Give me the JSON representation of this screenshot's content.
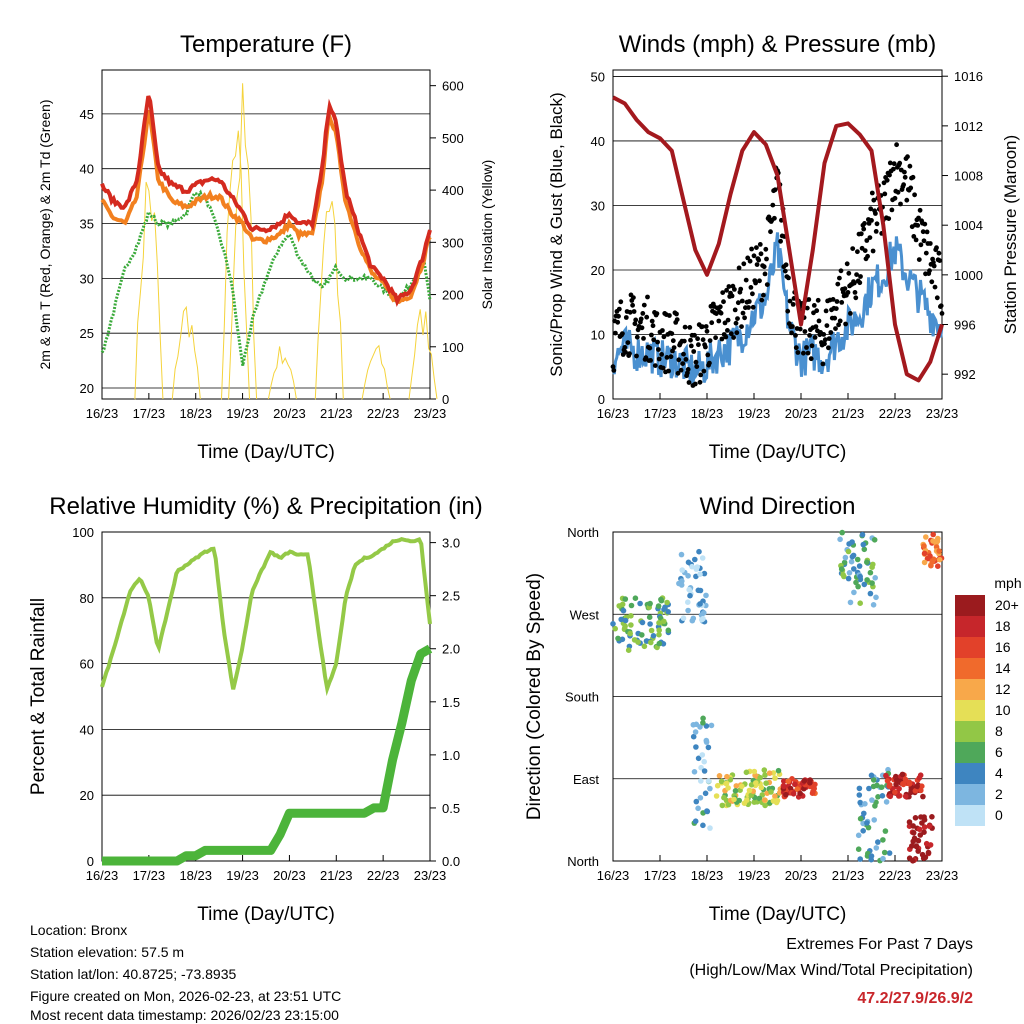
{
  "colors": {
    "temp2m": "#d42a1f",
    "temp9m": "#f2801f",
    "dewpoint": "#3aaa3a",
    "solar": "#f5d33c",
    "wind_sustained": "#4a90d0",
    "wind_gust": "#000000",
    "pressure": "#a3191e",
    "rh": "#94c947",
    "precip": "#4cb43a",
    "grid": "#000000",
    "extremes": "#c8262b"
  },
  "x_ticks": [
    "16/23",
    "17/23",
    "18/23",
    "19/23",
    "20/23",
    "21/23",
    "22/23",
    "23/23"
  ],
  "chart_data": [
    {
      "id": "temperature",
      "type": "line",
      "title": "Temperature (F)",
      "xlabel": "Time (Day/UTC)",
      "ylabel": "2m & 9m T (Red, Orange) & 2m Td (Green)",
      "ylabel_right": "Solar Insolation (Yellow)",
      "ylim": [
        19,
        49
      ],
      "yticks": [
        "20",
        "25",
        "30",
        "35",
        "40",
        "45"
      ],
      "ylim_right": [
        0,
        630
      ],
      "yticks_right": [
        "0",
        "100",
        "200",
        "300",
        "400",
        "500",
        "600"
      ],
      "x": [
        0,
        0.25,
        0.5,
        0.75,
        1.0,
        1.2,
        1.5,
        1.8,
        2.0,
        2.25,
        2.5,
        2.75,
        3.0,
        3.2,
        3.5,
        3.8,
        4.0,
        4.2,
        4.5,
        4.7,
        4.85,
        5.0,
        5.2,
        5.5,
        5.75,
        6.0,
        6.3,
        6.6,
        6.85,
        7.0
      ],
      "series": [
        {
          "name": "2m T",
          "color_key": "temp2m",
          "values": [
            38.5,
            37,
            36.5,
            39,
            47,
            40,
            38.5,
            38,
            38.5,
            39,
            39,
            37.5,
            36,
            34.5,
            34.5,
            35,
            36,
            35,
            35,
            40,
            46,
            44,
            38,
            34,
            31,
            30,
            28,
            29,
            32,
            34.5
          ]
        },
        {
          "name": "9m T",
          "color_key": "temp9m",
          "values": [
            37,
            35.5,
            35,
            37.5,
            45.5,
            39,
            37,
            36.5,
            37,
            37.5,
            37.5,
            36,
            35,
            33.5,
            33.5,
            34,
            35,
            34,
            34,
            39,
            45,
            43,
            37,
            33,
            30.5,
            29.5,
            27.8,
            28.5,
            31.5,
            34
          ]
        },
        {
          "name": "2m Td",
          "color_key": "dewpoint",
          "values": [
            23,
            27,
            31,
            33,
            36,
            35,
            35,
            36,
            38,
            37,
            34,
            30,
            22,
            26,
            30,
            33,
            34,
            32,
            30,
            29,
            30,
            31,
            30,
            30,
            30,
            29,
            28,
            29.5,
            32,
            28
          ]
        }
      ],
      "solar": {
        "color_key": "solar",
        "peaks": [
          {
            "x": 1.0,
            "value": 490
          },
          {
            "x": 1.8,
            "value": 200
          },
          {
            "x": 2.85,
            "value": 560
          },
          {
            "x": 3.0,
            "value": 620
          },
          {
            "x": 3.85,
            "value": 110
          },
          {
            "x": 4.85,
            "value": 490
          },
          {
            "x": 5.85,
            "value": 110
          },
          {
            "x": 6.85,
            "value": 190
          }
        ]
      }
    },
    {
      "id": "winds",
      "type": "line",
      "title": "Winds (mph) & Pressure (mb)",
      "xlabel": "Time (Day/UTC)",
      "ylabel": "Sonic/Prop Wind & Gust (Blue, Black)",
      "ylabel_right": "Station Pressure (Maroon)",
      "ylim": [
        0,
        51
      ],
      "yticks": [
        "0",
        "10",
        "20",
        "30",
        "40",
        "50"
      ],
      "ylim_right": [
        990,
        1016.5
      ],
      "yticks_right": [
        "992",
        "996",
        "1000",
        "1004",
        "1008",
        "1012",
        "1016"
      ],
      "x": [
        0,
        0.25,
        0.5,
        0.75,
        1.0,
        1.25,
        1.5,
        1.75,
        2.0,
        2.25,
        2.5,
        2.75,
        3.0,
        3.25,
        3.5,
        3.75,
        4.0,
        4.25,
        4.5,
        4.75,
        5.0,
        5.25,
        5.5,
        5.75,
        6.0,
        6.25,
        6.5,
        6.75,
        7.0
      ],
      "series": [
        {
          "name": "Sustained wind",
          "color_key": "wind_sustained",
          "values": [
            5,
            7,
            6,
            6,
            5,
            5,
            4,
            3,
            4,
            6,
            7,
            9,
            12,
            14,
            22,
            10,
            5,
            6,
            5,
            8,
            10,
            12,
            16,
            18,
            22,
            18,
            15,
            12,
            10
          ]
        },
        {
          "name": "Gust",
          "color_key": "wind_gust",
          "values": [
            8,
            11,
            10,
            10,
            8,
            8,
            7,
            5,
            8,
            11,
            13,
            15,
            18,
            20,
            32,
            15,
            9,
            10,
            9,
            14,
            16,
            20,
            26,
            28,
            35,
            33,
            25,
            20,
            16
          ]
        },
        {
          "name": "Station pressure",
          "color_key": "pressure",
          "values": [
            1014.3,
            1013.8,
            1012.5,
            1011.5,
            1011,
            1010,
            1006,
            1002,
            1000,
            1002.5,
            1006.5,
            1010,
            1011.5,
            1010.5,
            1008,
            1002,
            996,
            1002,
            1009,
            1012,
            1012.2,
            1011.3,
            1010,
            1004,
            996,
            992,
            991.5,
            993,
            996
          ]
        }
      ]
    },
    {
      "id": "humidity",
      "type": "line",
      "title": "Relative Humidity (%) & Precipitation (in)",
      "xlabel": "Time (Day/UTC)",
      "ylabel": "Percent & Total Rainfall",
      "ylim": [
        0,
        100
      ],
      "yticks": [
        "0",
        "20",
        "40",
        "60",
        "80",
        "100"
      ],
      "ylim_right": [
        0,
        3.1
      ],
      "yticks_right": [
        "0.0",
        "0.5",
        "1.0",
        "1.5",
        "2.0",
        "2.5",
        "3.0"
      ],
      "x": [
        0,
        0.2,
        0.4,
        0.6,
        0.8,
        1.0,
        1.2,
        1.4,
        1.6,
        1.8,
        2.0,
        2.2,
        2.4,
        2.6,
        2.8,
        3.0,
        3.2,
        3.4,
        3.6,
        3.8,
        4.0,
        4.2,
        4.4,
        4.6,
        4.8,
        5.0,
        5.2,
        5.4,
        5.6,
        5.8,
        6.0,
        6.2,
        6.4,
        6.6,
        6.8,
        7.0
      ],
      "series": [
        {
          "name": "Relative humidity",
          "color_key": "rh",
          "values": [
            53,
            62,
            72,
            82,
            86,
            80,
            64,
            76,
            88,
            90,
            92,
            94,
            95,
            70,
            52,
            65,
            82,
            88,
            94,
            92,
            94,
            93,
            93,
            72,
            52,
            60,
            80,
            90,
            92,
            93,
            95,
            97,
            98,
            97,
            98,
            72
          ]
        },
        {
          "name": "Total precipitation",
          "color_key": "precip",
          "values": [
            0,
            0,
            0,
            0,
            0,
            0,
            0,
            0,
            0,
            0.05,
            0.05,
            0.1,
            0.1,
            0.1,
            0.1,
            0.1,
            0.1,
            0.1,
            0.1,
            0.25,
            0.45,
            0.45,
            0.45,
            0.45,
            0.45,
            0.45,
            0.45,
            0.45,
            0.45,
            0.5,
            0.5,
            0.95,
            1.3,
            1.7,
            1.95,
            2.0
          ]
        }
      ]
    },
    {
      "id": "direction",
      "type": "scatter",
      "title": "Wind Direction",
      "xlabel": "Time (Day/UTC)",
      "ylabel": "Direction (Colored By Speed)",
      "ylim": [
        0,
        360
      ],
      "ytick_labels": [
        "North",
        "East",
        "South",
        "West",
        "North"
      ],
      "clusters": [
        {
          "x0": 0.0,
          "x1": 1.2,
          "y0": 230,
          "y1": 290,
          "speed": 6
        },
        {
          "x0": 1.4,
          "x1": 2.0,
          "y0": 260,
          "y1": 340,
          "speed": 2
        },
        {
          "x0": 1.7,
          "x1": 2.1,
          "y0": 10,
          "y1": 160,
          "speed": 3
        },
        {
          "x0": 2.2,
          "x1": 3.6,
          "y0": 60,
          "y1": 100,
          "speed": 9
        },
        {
          "x0": 3.6,
          "x1": 4.3,
          "y0": 70,
          "y1": 90,
          "speed": 17
        },
        {
          "x0": 4.8,
          "x1": 5.6,
          "y0": 280,
          "y1": 360,
          "speed": 5
        },
        {
          "x0": 5.2,
          "x1": 5.9,
          "y0": 0,
          "y1": 100,
          "speed": 4
        },
        {
          "x0": 5.8,
          "x1": 6.6,
          "y0": 70,
          "y1": 95,
          "speed": 18
        },
        {
          "x0": 6.3,
          "x1": 6.8,
          "y0": 0,
          "y1": 50,
          "speed": 20
        },
        {
          "x0": 6.6,
          "x1": 7.0,
          "y0": 320,
          "y1": 360,
          "speed": 14
        }
      ],
      "legend": {
        "title": "mph",
        "labels": [
          "20+",
          "18",
          "16",
          "14",
          "12",
          "10",
          "8",
          "6",
          "4",
          "2",
          "0"
        ],
        "colors": [
          "#9b1b1e",
          "#c6262b",
          "#e2412a",
          "#f06a2c",
          "#f8a84a",
          "#e5df56",
          "#92c746",
          "#4fa85a",
          "#3e85c0",
          "#7db6e0",
          "#bfe2f6"
        ]
      }
    }
  ],
  "info": {
    "location": "Location: Bronx",
    "elevation": "Station elevation: 57.5 m",
    "latlon": "Station lat/lon: 40.8725; -73.8935",
    "created": "Figure created on Mon, 2026-02-23, at 23:51 UTC",
    "recent": "Most recent data timestamp: 2026/02/23 23:15:00"
  },
  "extremes": {
    "title": "Extremes For Past 7 Days",
    "subtitle": "(High/Low/Max Wind/Total Precipitation)",
    "values": "47.2/27.9/26.9/2"
  }
}
